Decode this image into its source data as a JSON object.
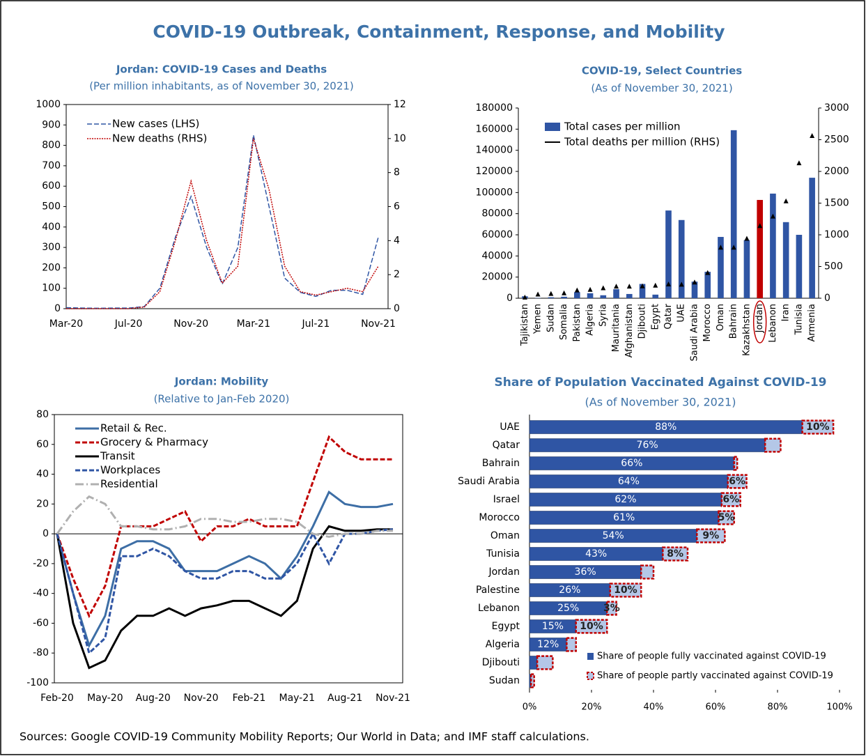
{
  "title": "COVID-19 Outbreak, Containment, Response, and Mobility",
  "source": "Sources: Google COVID-19 Community Mobility Reports; Our World in Data; and IMF staff calculations.",
  "chart_data": [
    {
      "type": "line",
      "title": "Jordan: COVID-19 Cases and Deaths",
      "subtitle": "(Per million inhabitants, as of November 30, 2021)",
      "categories": [
        "Mar-20",
        null,
        null,
        null,
        "Jul-20",
        null,
        null,
        null,
        "Nov-20",
        null,
        null,
        null,
        "Mar-21",
        null,
        null,
        null,
        "Jul-21",
        null,
        null,
        null,
        "Nov-21"
      ],
      "series": [
        {
          "name": "New cases (LHS)",
          "color": "#2f55a4",
          "dash": "dashed",
          "values": [
            5,
            3,
            2,
            3,
            3,
            10,
            100,
            350,
            550,
            300,
            120,
            300,
            850,
            500,
            150,
            80,
            60,
            90,
            90,
            70,
            350
          ]
        },
        {
          "name": "New deaths (RHS)",
          "color": "#c00000",
          "dash": "dotted",
          "axis": "y2",
          "values": [
            0,
            0,
            0,
            0,
            0,
            0.1,
            1,
            4,
            7.5,
            4,
            1.5,
            2.5,
            10,
            7,
            2.5,
            1,
            0.8,
            1,
            1.2,
            1,
            2.5
          ]
        }
      ],
      "ylim": [
        0,
        1000
      ],
      "yticks": [
        0,
        100,
        200,
        300,
        400,
        500,
        600,
        700,
        800,
        900,
        1000
      ],
      "y2lim": [
        0,
        12
      ],
      "y2ticks": [
        0,
        2,
        4,
        6,
        8,
        10,
        12
      ],
      "legend": "upper left"
    },
    {
      "type": "bar",
      "title": "COVID-19, Select Countries",
      "subtitle": "(As of November 30, 2021)",
      "categories": [
        "Tajikistan",
        "Yemen",
        "Sudan",
        "Somalia",
        "Pakistan",
        "Algeria",
        "Syria",
        "Mauritania",
        "Afghanistan",
        "Djibouti",
        "Egypt",
        "Qatar",
        "UAE",
        "Saudi Arabia",
        "Morocco",
        "Oman",
        "Bahrain",
        "Kazakhstan",
        "Jordan",
        "Lebanon",
        "Iran",
        "Tunisia",
        "Armenia"
      ],
      "series": [
        {
          "name": "Total cases per million",
          "color": "#2f55a4",
          "colors": [
            "#2f55a4",
            "#2f55a4",
            "#2f55a4",
            "#2f55a4",
            "#2f55a4",
            "#2f55a4",
            "#2f55a4",
            "#2f55a4",
            "#2f55a4",
            "#2f55a4",
            "#2f55a4",
            "#2f55a4",
            "#2f55a4",
            "#2f55a4",
            "#2f55a4",
            "#2f55a4",
            "#2f55a4",
            "#2f55a4",
            "#c00000",
            "#2f55a4",
            "#2f55a4",
            "#2f55a4",
            "#2f55a4"
          ],
          "values": [
            1800,
            300,
            900,
            1400,
            5700,
            4700,
            2800,
            8500,
            4000,
            13500,
            3400,
            83000,
            74000,
            15700,
            25000,
            58000,
            159000,
            55000,
            93000,
            99000,
            72000,
            60000,
            114000
          ]
        },
        {
          "name": "Total deaths per million (RHS)",
          "color": "#000000",
          "axis": "y2",
          "marker": "triangle",
          "values": [
            13,
            60,
            70,
            80,
            125,
            135,
            160,
            185,
            185,
            190,
            200,
            220,
            215,
            250,
            400,
            800,
            800,
            940,
            1140,
            1290,
            1530,
            2130,
            2560
          ]
        }
      ],
      "ylim": [
        0,
        180000
      ],
      "yticks": [
        0,
        20000,
        40000,
        60000,
        80000,
        100000,
        120000,
        140000,
        160000,
        180000
      ],
      "y2lim": [
        0,
        3000
      ],
      "y2ticks": [
        0,
        500,
        1000,
        1500,
        2000,
        2500,
        3000
      ],
      "legend": "upper left"
    },
    {
      "type": "line",
      "title": "Jordan: Mobility",
      "subtitle": "(Relative to Jan-Feb 2020)",
      "categories": [
        "Feb-20",
        null,
        null,
        "May-20",
        null,
        null,
        "Aug-20",
        null,
        null,
        "Nov-20",
        null,
        null,
        "Feb-21",
        null,
        null,
        "May-21",
        null,
        null,
        "Aug-21",
        null,
        null,
        "Nov-21"
      ],
      "series": [
        {
          "name": "Retail & Rec.",
          "color": "#3d6ea5",
          "dash": "solid",
          "values": [
            0,
            -40,
            -75,
            -55,
            -10,
            -5,
            -5,
            -10,
            -25,
            -25,
            -25,
            -20,
            -15,
            -20,
            -30,
            -15,
            5,
            28,
            20,
            18,
            18,
            20
          ]
        },
        {
          "name": "Grocery & Pharmacy",
          "color": "#c00000",
          "dash": "dashed",
          "values": [
            0,
            -30,
            -55,
            -35,
            5,
            5,
            5,
            10,
            15,
            -5,
            5,
            5,
            10,
            5,
            5,
            5,
            35,
            65,
            55,
            50,
            50,
            50
          ]
        },
        {
          "name": "Transit",
          "color": "#000000",
          "dash": "solid",
          "values": [
            0,
            -60,
            -90,
            -85,
            -65,
            -55,
            -55,
            -50,
            -55,
            -50,
            -48,
            -45,
            -45,
            -50,
            -55,
            -45,
            -10,
            5,
            2,
            2,
            3,
            3
          ]
        },
        {
          "name": "Workplaces",
          "color": "#2f55a4",
          "dash": "dashed",
          "values": [
            0,
            -40,
            -80,
            -70,
            -15,
            -15,
            -10,
            -15,
            -25,
            -30,
            -30,
            -25,
            -25,
            -30,
            -30,
            -20,
            0,
            -20,
            0,
            0,
            2,
            3
          ]
        },
        {
          "name": "Residential",
          "color": "#b0b0b0",
          "dash": "dashdot",
          "values": [
            0,
            15,
            25,
            20,
            5,
            5,
            3,
            3,
            5,
            10,
            10,
            8,
            8,
            10,
            10,
            8,
            0,
            -2,
            0,
            0,
            2,
            2
          ]
        }
      ],
      "ylim": [
        -100,
        80
      ],
      "yticks": [
        -100,
        -80,
        -60,
        -40,
        -20,
        0,
        20,
        40,
        60,
        80
      ],
      "legend": "upper left"
    },
    {
      "type": "barh",
      "title": "Share of Population Vaccinated Against COVID-19",
      "subtitle": "(As of November 30, 2021)",
      "categories": [
        "UAE",
        "Qatar",
        "Bahrain",
        "Saudi Arabia",
        "Israel",
        "Morocco",
        "Oman",
        "Tunisia",
        "Jordan",
        "Palestine",
        "Lebanon",
        "Egypt",
        "Algeria",
        "Djibouti",
        "Sudan"
      ],
      "series": [
        {
          "name": "Share of people fully vaccinated against COVID-19",
          "color": "#2f55a4",
          "values": [
            88,
            76,
            66,
            64,
            62,
            61,
            54,
            43,
            36,
            26,
            25,
            15,
            12,
            2.5,
            0.5
          ],
          "value_labels": [
            "88%",
            "76%",
            "66%",
            "64%",
            "62%",
            "61%",
            "54%",
            "43%",
            "36%",
            "26%",
            "25%",
            "15%",
            "12%",
            null,
            null
          ]
        },
        {
          "name": "Share of people partly vaccinated against COVID-19",
          "color": "#b4c7e7",
          "edge_color": "#c00000",
          "values": [
            10,
            5,
            1,
            6,
            6,
            5,
            9,
            8,
            4,
            10,
            3,
            10,
            3,
            5,
            1
          ],
          "value_labels": [
            "10%",
            null,
            null,
            "6%",
            "6%",
            "5%",
            "9%",
            "8%",
            null,
            "10%",
            "3%",
            "10%",
            null,
            null,
            null
          ]
        }
      ],
      "stacked": true,
      "xlim": [
        0,
        100
      ],
      "xticks": [
        {
          "value": 0,
          "label": "0%"
        },
        {
          "value": 20,
          "label": "20%"
        },
        {
          "value": 40,
          "label": "40%"
        },
        {
          "value": 60,
          "label": "60%"
        },
        {
          "value": 80,
          "label": "80%"
        },
        {
          "value": 100,
          "label": "100%"
        }
      ],
      "legend": "lower right"
    }
  ]
}
